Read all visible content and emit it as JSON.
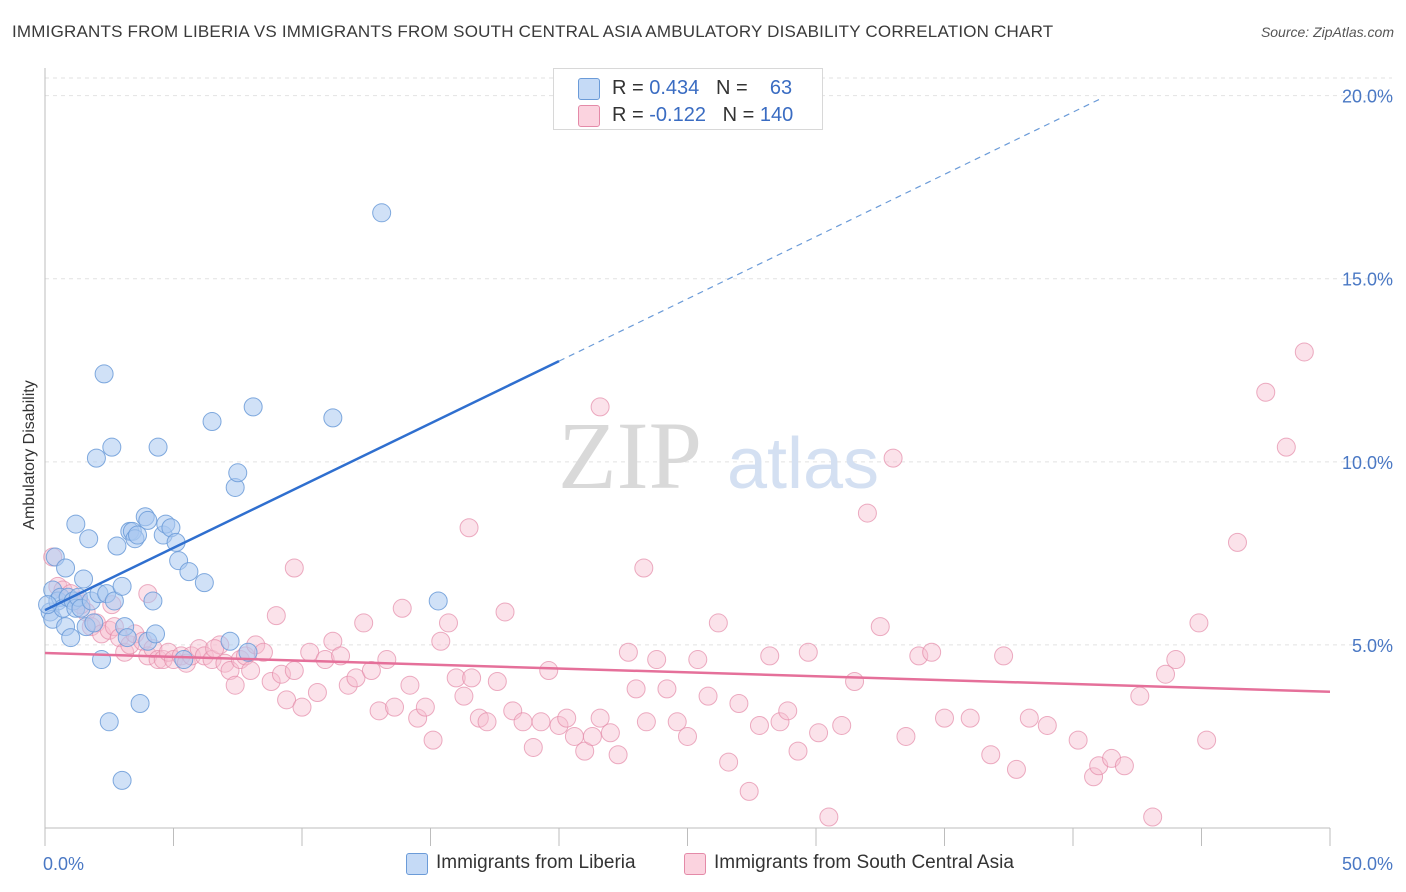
{
  "header": {
    "title": "IMMIGRANTS FROM LIBERIA VS IMMIGRANTS FROM SOUTH CENTRAL ASIA AMBULATORY DISABILITY CORRELATION CHART",
    "source": "Source: ZipAtlas.com"
  },
  "watermark": {
    "zip": "ZIP",
    "atlas": "atlas"
  },
  "legend": {
    "rows": [
      {
        "r_label": "R =",
        "r_value": "0.434",
        "n_label": "N =",
        "n_value": "63",
        "color": "#a9c8f0",
        "border": "#6b9bd8"
      },
      {
        "r_label": "R =",
        "r_value": "-0.122",
        "n_label": "N =",
        "n_value": "140",
        "color": "#f7bfd0",
        "border": "#e48aa8"
      }
    ]
  },
  "bottom_legend": {
    "liberia": "Immigrants from Liberia",
    "sca": "Immigrants from South Central Asia"
  },
  "chart_data": {
    "type": "scatter",
    "title": "IMMIGRANTS FROM LIBERIA VS IMMIGRANTS FROM SOUTH CENTRAL ASIA AMBULATORY DISABILITY CORRELATION CHART",
    "xlabel": "",
    "ylabel": "Ambulatory Disability",
    "xlim": [
      0,
      50
    ],
    "ylim": [
      0,
      20.7
    ],
    "x_tick_labels": [
      "0.0%",
      "50.0%"
    ],
    "y_tick_values": [
      5,
      10,
      15,
      20
    ],
    "y_tick_labels": [
      "5.0%",
      "10.0%",
      "15.0%",
      "20.0%"
    ],
    "grid": true,
    "series": [
      {
        "name": "Immigrants from Liberia",
        "color": "#6b9bd8",
        "fill": "#a9c8f0",
        "trend": {
          "x": [
            0,
            20
          ],
          "y": [
            5.95,
            12.75
          ],
          "dashed_extension_to_x": 41.1
        },
        "points": [
          [
            0.2,
            5.9
          ],
          [
            0.3,
            6.5
          ],
          [
            0.3,
            5.7
          ],
          [
            0.4,
            7.4
          ],
          [
            0.5,
            6.2
          ],
          [
            0.6,
            6.3
          ],
          [
            0.7,
            6.0
          ],
          [
            0.8,
            7.1
          ],
          [
            0.8,
            5.5
          ],
          [
            0.9,
            6.3
          ],
          [
            1.0,
            5.2
          ],
          [
            1.1,
            6.2
          ],
          [
            1.2,
            6.0
          ],
          [
            1.2,
            8.3
          ],
          [
            1.3,
            6.3
          ],
          [
            1.4,
            6.0
          ],
          [
            1.5,
            6.8
          ],
          [
            1.6,
            5.5
          ],
          [
            1.7,
            7.9
          ],
          [
            1.8,
            6.2
          ],
          [
            1.9,
            5.6
          ],
          [
            2.0,
            10.1
          ],
          [
            2.1,
            6.4
          ],
          [
            2.2,
            4.6
          ],
          [
            2.3,
            12.4
          ],
          [
            2.4,
            6.4
          ],
          [
            2.5,
            2.9
          ],
          [
            2.6,
            10.4
          ],
          [
            2.7,
            6.2
          ],
          [
            2.8,
            7.7
          ],
          [
            3.0,
            6.6
          ],
          [
            3.0,
            1.3
          ],
          [
            3.1,
            5.5
          ],
          [
            3.2,
            5.2
          ],
          [
            3.3,
            8.1
          ],
          [
            3.4,
            8.1
          ],
          [
            3.5,
            7.9
          ],
          [
            3.6,
            8.0
          ],
          [
            3.7,
            3.4
          ],
          [
            3.9,
            8.5
          ],
          [
            4.0,
            8.4
          ],
          [
            4.0,
            5.1
          ],
          [
            4.2,
            6.2
          ],
          [
            4.3,
            5.3
          ],
          [
            4.4,
            10.4
          ],
          [
            4.6,
            8.0
          ],
          [
            4.7,
            8.3
          ],
          [
            4.9,
            8.2
          ],
          [
            5.1,
            7.8
          ],
          [
            5.2,
            7.3
          ],
          [
            5.4,
            4.6
          ],
          [
            5.6,
            7.0
          ],
          [
            6.2,
            6.7
          ],
          [
            6.5,
            11.1
          ],
          [
            7.2,
            5.1
          ],
          [
            7.4,
            9.3
          ],
          [
            7.5,
            9.7
          ],
          [
            7.9,
            4.8
          ],
          [
            8.1,
            11.5
          ],
          [
            11.2,
            11.2
          ],
          [
            13.1,
            16.8
          ],
          [
            15.3,
            6.2
          ],
          [
            0.1,
            6.1
          ]
        ]
      },
      {
        "name": "Immigrants from South Central Asia",
        "color": "#e48aa8",
        "fill": "#f7bfd0",
        "trend": {
          "x": [
            0,
            50
          ],
          "y": [
            4.78,
            3.72
          ]
        },
        "points": [
          [
            0.3,
            7.4
          ],
          [
            0.5,
            6.6
          ],
          [
            0.7,
            6.5
          ],
          [
            1.0,
            6.4
          ],
          [
            1.3,
            6.2
          ],
          [
            1.6,
            5.9
          ],
          [
            1.8,
            5.5
          ],
          [
            2.0,
            5.6
          ],
          [
            2.2,
            5.3
          ],
          [
            2.5,
            5.4
          ],
          [
            2.7,
            5.5
          ],
          [
            2.9,
            5.2
          ],
          [
            3.1,
            4.8
          ],
          [
            3.3,
            5.0
          ],
          [
            3.5,
            5.3
          ],
          [
            3.8,
            5.1
          ],
          [
            4.0,
            4.7
          ],
          [
            4.2,
            4.9
          ],
          [
            4.4,
            4.6
          ],
          [
            4.6,
            4.6
          ],
          [
            4.8,
            4.8
          ],
          [
            5.0,
            4.6
          ],
          [
            5.3,
            4.7
          ],
          [
            5.5,
            4.5
          ],
          [
            5.7,
            4.7
          ],
          [
            6.0,
            4.9
          ],
          [
            6.2,
            4.7
          ],
          [
            6.5,
            4.6
          ],
          [
            6.8,
            5.0
          ],
          [
            7.0,
            4.5
          ],
          [
            7.2,
            4.3
          ],
          [
            7.4,
            3.9
          ],
          [
            7.6,
            4.6
          ],
          [
            7.8,
            4.7
          ],
          [
            8.0,
            4.3
          ],
          [
            8.2,
            5.0
          ],
          [
            8.5,
            4.8
          ],
          [
            8.8,
            4.0
          ],
          [
            9.0,
            5.8
          ],
          [
            9.2,
            4.2
          ],
          [
            9.4,
            3.5
          ],
          [
            9.7,
            4.3
          ],
          [
            10.0,
            3.3
          ],
          [
            10.3,
            4.8
          ],
          [
            10.6,
            3.7
          ],
          [
            10.9,
            4.6
          ],
          [
            11.2,
            5.1
          ],
          [
            11.5,
            4.7
          ],
          [
            11.8,
            3.9
          ],
          [
            12.1,
            4.1
          ],
          [
            12.4,
            5.6
          ],
          [
            12.7,
            4.3
          ],
          [
            13.0,
            3.2
          ],
          [
            13.3,
            4.6
          ],
          [
            13.6,
            3.3
          ],
          [
            13.9,
            6.0
          ],
          [
            14.2,
            3.9
          ],
          [
            14.5,
            3.0
          ],
          [
            14.8,
            3.3
          ],
          [
            15.1,
            2.4
          ],
          [
            15.4,
            5.1
          ],
          [
            15.7,
            5.6
          ],
          [
            16.0,
            4.1
          ],
          [
            16.3,
            3.6
          ],
          [
            16.6,
            4.1
          ],
          [
            16.9,
            3.0
          ],
          [
            17.2,
            2.9
          ],
          [
            17.6,
            4.0
          ],
          [
            17.9,
            5.9
          ],
          [
            18.2,
            3.2
          ],
          [
            18.6,
            2.9
          ],
          [
            19.0,
            2.2
          ],
          [
            19.3,
            2.9
          ],
          [
            19.6,
            4.3
          ],
          [
            20.0,
            2.8
          ],
          [
            20.3,
            3.0
          ],
          [
            20.6,
            2.5
          ],
          [
            21.0,
            2.1
          ],
          [
            21.3,
            2.5
          ],
          [
            21.6,
            3.0
          ],
          [
            22.0,
            2.6
          ],
          [
            22.3,
            2.0
          ],
          [
            22.7,
            4.8
          ],
          [
            23.0,
            3.8
          ],
          [
            23.4,
            2.9
          ],
          [
            23.8,
            4.6
          ],
          [
            24.2,
            3.8
          ],
          [
            24.6,
            2.9
          ],
          [
            25.0,
            2.5
          ],
          [
            25.4,
            4.6
          ],
          [
            25.8,
            3.6
          ],
          [
            26.2,
            5.6
          ],
          [
            26.6,
            1.8
          ],
          [
            27.0,
            3.4
          ],
          [
            27.4,
            1.0
          ],
          [
            27.8,
            2.8
          ],
          [
            28.2,
            4.7
          ],
          [
            28.6,
            2.9
          ],
          [
            28.9,
            3.2
          ],
          [
            29.3,
            2.1
          ],
          [
            29.7,
            4.8
          ],
          [
            30.1,
            2.6
          ],
          [
            30.5,
            0.3
          ],
          [
            31.0,
            2.8
          ],
          [
            31.5,
            4.0
          ],
          [
            32.0,
            8.6
          ],
          [
            32.5,
            5.5
          ],
          [
            33.0,
            10.1
          ],
          [
            33.5,
            2.5
          ],
          [
            34.0,
            4.7
          ],
          [
            34.5,
            4.8
          ],
          [
            35.0,
            3.0
          ],
          [
            36.0,
            3.0
          ],
          [
            36.8,
            2.0
          ],
          [
            37.3,
            4.7
          ],
          [
            37.8,
            1.6
          ],
          [
            38.3,
            3.0
          ],
          [
            39.0,
            2.8
          ],
          [
            40.2,
            2.4
          ],
          [
            40.8,
            1.4
          ],
          [
            41.0,
            1.7
          ],
          [
            41.5,
            1.9
          ],
          [
            42.0,
            1.7
          ],
          [
            42.6,
            3.6
          ],
          [
            43.6,
            4.2
          ],
          [
            43.1,
            0.3
          ],
          [
            44.0,
            4.6
          ],
          [
            44.9,
            5.6
          ],
          [
            45.2,
            2.4
          ],
          [
            46.4,
            7.8
          ],
          [
            47.5,
            11.9
          ],
          [
            48.3,
            10.4
          ],
          [
            49.0,
            13.0
          ],
          [
            21.6,
            11.5
          ],
          [
            16.5,
            8.2
          ],
          [
            23.3,
            7.1
          ],
          [
            9.7,
            7.1
          ],
          [
            4.0,
            6.4
          ],
          [
            2.6,
            6.1
          ],
          [
            1.4,
            6.1
          ],
          [
            6.6,
            4.9
          ]
        ]
      }
    ]
  }
}
